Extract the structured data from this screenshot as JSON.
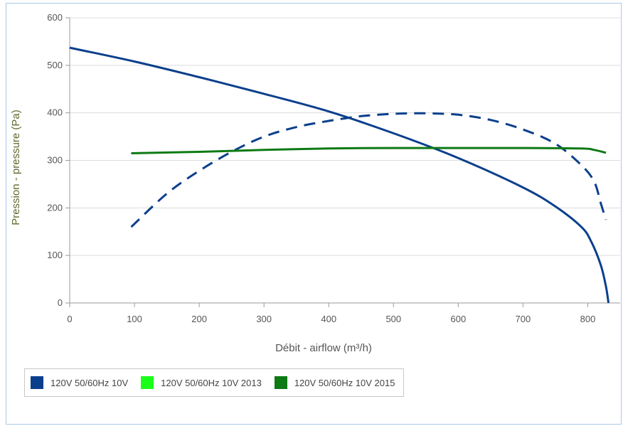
{
  "chart_data": {
    "type": "line",
    "title": "",
    "xlabel": "Débit - airflow (m³/h)",
    "ylabel": "Pression - pressure (Pa)",
    "xlim": [
      0,
      850
    ],
    "ylim": [
      0,
      600
    ],
    "xticks": [
      0,
      100,
      200,
      300,
      400,
      500,
      600,
      700,
      800
    ],
    "yticks": [
      0,
      100,
      200,
      300,
      400,
      500,
      600
    ],
    "grid": true,
    "legend_position": "bottom-left",
    "series": [
      {
        "name": "120V 50/60Hz 10V",
        "color": "#0b3f8c",
        "dash": false,
        "points": [
          [
            0,
            537
          ],
          [
            100,
            508
          ],
          [
            200,
            475
          ],
          [
            300,
            440
          ],
          [
            400,
            403
          ],
          [
            500,
            357
          ],
          [
            600,
            305
          ],
          [
            700,
            243
          ],
          [
            750,
            203
          ],
          [
            790,
            160
          ],
          [
            805,
            130
          ],
          [
            820,
            80
          ],
          [
            828,
            35
          ],
          [
            832,
            0
          ]
        ]
      },
      {
        "name": "",
        "color": "#0b3f8c",
        "dash": true,
        "points": [
          [
            95,
            160
          ],
          [
            150,
            230
          ],
          [
            200,
            278
          ],
          [
            250,
            318
          ],
          [
            300,
            350
          ],
          [
            350,
            370
          ],
          [
            400,
            383
          ],
          [
            450,
            393
          ],
          [
            500,
            398
          ],
          [
            550,
            399
          ],
          [
            600,
            396
          ],
          [
            650,
            385
          ],
          [
            700,
            365
          ],
          [
            750,
            335
          ],
          [
            790,
            290
          ],
          [
            810,
            255
          ],
          [
            820,
            210
          ],
          [
            828,
            175
          ]
        ]
      },
      {
        "name": "120V 50/60Hz 10V 2015",
        "color": "#0d7a14",
        "dash": false,
        "points": [
          [
            95,
            315
          ],
          [
            200,
            318
          ],
          [
            300,
            322
          ],
          [
            400,
            325
          ],
          [
            500,
            326
          ],
          [
            600,
            326
          ],
          [
            700,
            326
          ],
          [
            790,
            325
          ],
          [
            810,
            322
          ],
          [
            828,
            316
          ]
        ]
      }
    ],
    "legend": [
      {
        "label": "120V 50/60Hz 10V",
        "color": "#0b3f8c"
      },
      {
        "label": "120V 50/60Hz 10V 2013",
        "color": "#1aff1a"
      },
      {
        "label": "120V 50/60Hz 10V 2015",
        "color": "#0d7a14"
      }
    ]
  }
}
